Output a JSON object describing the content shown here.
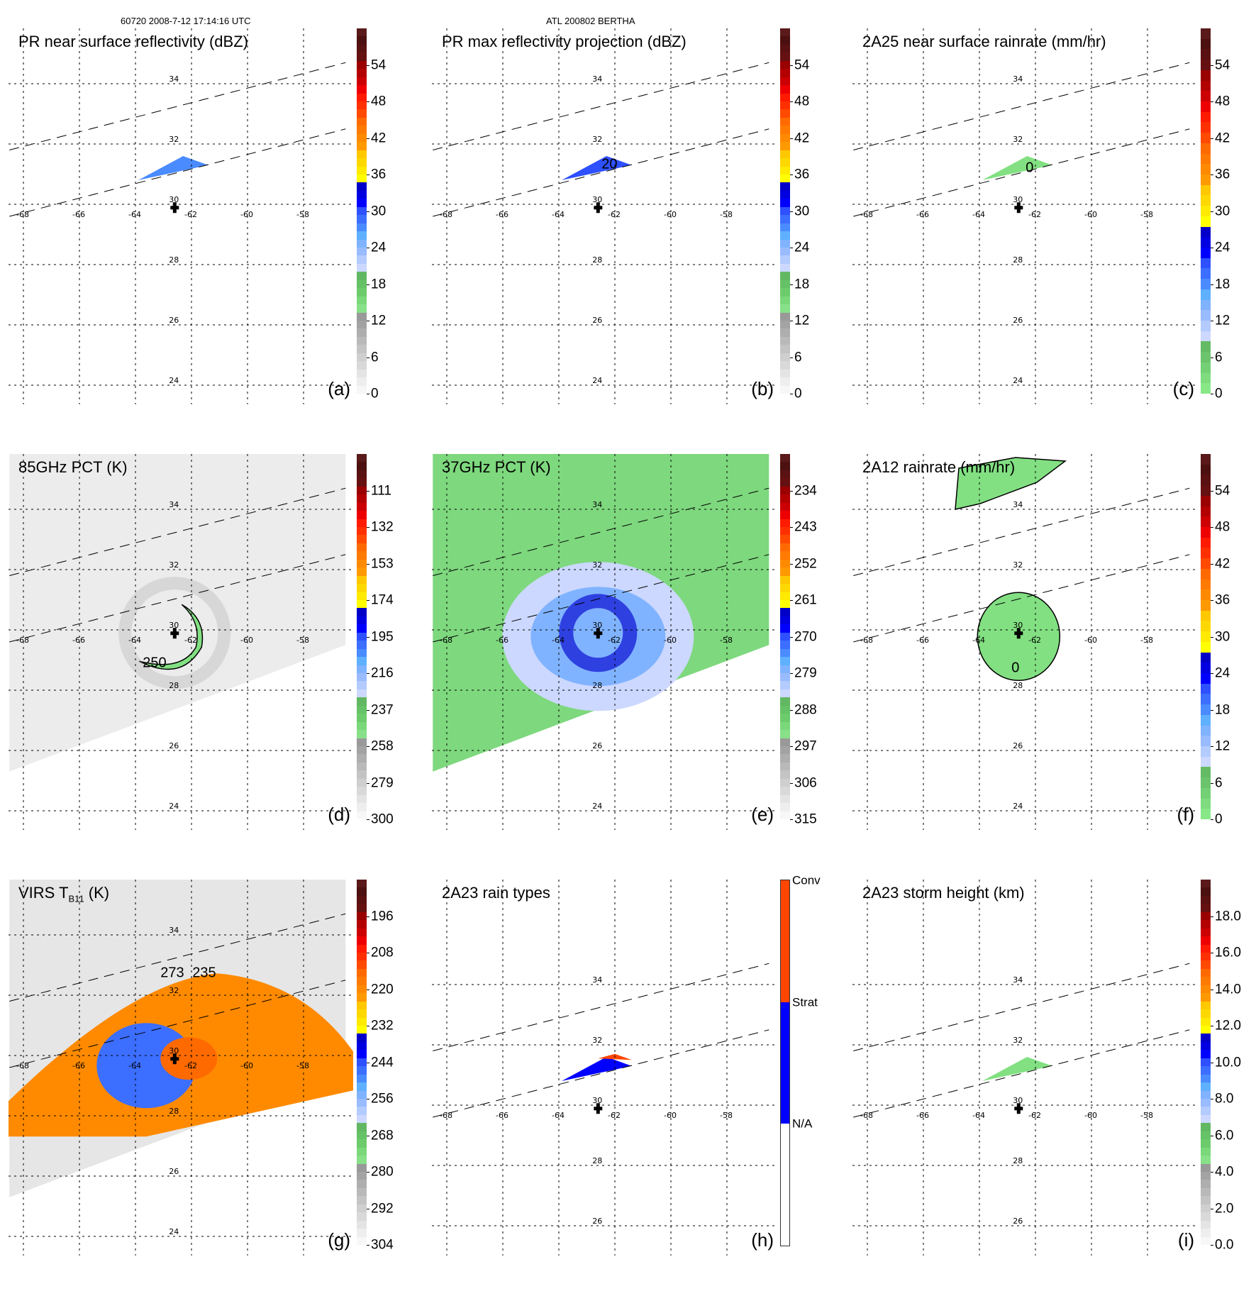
{
  "header": {
    "left": "60720 2008-7-12 17:14:16 UTC",
    "center": "ATL 200802 BERTHA"
  },
  "grid": {
    "lat_labels": [
      "34",
      "32",
      "30",
      "28",
      "26",
      "24"
    ],
    "lon_labels": [
      "-68",
      "-66",
      "-64",
      "-62",
      "-60",
      "-58"
    ],
    "storm_center": {
      "lon": -62.6,
      "lat": 29.9
    }
  },
  "panels": [
    {
      "id": "a",
      "letter": "(a)",
      "title": "PR near surface reflectivity (dBZ)",
      "cbar_type": "continuous",
      "ticks": [
        "54",
        "48",
        "42",
        "36",
        "30",
        "24",
        "18",
        "12",
        "6",
        "0"
      ],
      "palette": "refl",
      "contour_labels": []
    },
    {
      "id": "b",
      "letter": "(b)",
      "title": "PR max reflectivity projection (dBZ)",
      "cbar_type": "continuous",
      "ticks": [
        "54",
        "48",
        "42",
        "36",
        "30",
        "24",
        "18",
        "12",
        "6",
        "0"
      ],
      "palette": "refl",
      "contour_labels": [
        "20"
      ]
    },
    {
      "id": "c",
      "letter": "(c)",
      "title": "2A25 near surface rainrate (mm/hr)",
      "cbar_type": "continuous",
      "ticks": [
        "54",
        "48",
        "42",
        "36",
        "30",
        "24",
        "18",
        "12",
        "6",
        "0"
      ],
      "palette": "rain",
      "contour_labels": [
        "0"
      ]
    },
    {
      "id": "d",
      "letter": "(d)",
      "title": "85GHz PCT (K)",
      "cbar_type": "continuous",
      "ticks": [
        "111",
        "132",
        "153",
        "174",
        "195",
        "216",
        "237",
        "258",
        "279",
        "300"
      ],
      "palette": "refl",
      "contour_labels": [
        "250"
      ]
    },
    {
      "id": "e",
      "letter": "(e)",
      "title": "37GHz PCT (K)",
      "cbar_type": "continuous",
      "ticks": [
        "234",
        "243",
        "252",
        "261",
        "270",
        "279",
        "288",
        "297",
        "306",
        "315"
      ],
      "palette": "refl",
      "contour_labels": []
    },
    {
      "id": "f",
      "letter": "(f)",
      "title": "2A12 rainrate (mm/hr)",
      "cbar_type": "continuous",
      "ticks": [
        "54",
        "48",
        "42",
        "36",
        "30",
        "24",
        "18",
        "12",
        "6",
        "0"
      ],
      "palette": "rain",
      "contour_labels": [
        "0"
      ]
    },
    {
      "id": "g",
      "letter": "(g)",
      "title": "VIRS T",
      "title_sub": "B11",
      "title_suffix": " (K)",
      "cbar_type": "continuous",
      "ticks": [
        "196",
        "208",
        "220",
        "232",
        "244",
        "256",
        "268",
        "280",
        "292",
        "304"
      ],
      "palette": "refl",
      "contour_labels": [
        "273",
        "235"
      ]
    },
    {
      "id": "h",
      "letter": "(h)",
      "title": "2A23 rain types",
      "cbar_type": "categorical",
      "categories": [
        {
          "label": "Conv",
          "color": "#ff4500"
        },
        {
          "label": "Strat",
          "color": "#0000ff"
        },
        {
          "label": "N/A",
          "color": "#ffffff"
        }
      ],
      "contour_labels": []
    },
    {
      "id": "i",
      "letter": "(i)",
      "title": "2A23 storm height (km)",
      "cbar_type": "continuous",
      "ticks": [
        "18.0",
        "16.0",
        "14.0",
        "12.0",
        "10.0",
        "8.0",
        "6.0",
        "4.0",
        "2.0",
        "0.0"
      ],
      "palette": "refl",
      "contour_labels": []
    }
  ],
  "colors": {
    "grid": "#000000",
    "storm_marker": "#000000",
    "conv": "#ff4500",
    "strat": "#0000ff"
  }
}
